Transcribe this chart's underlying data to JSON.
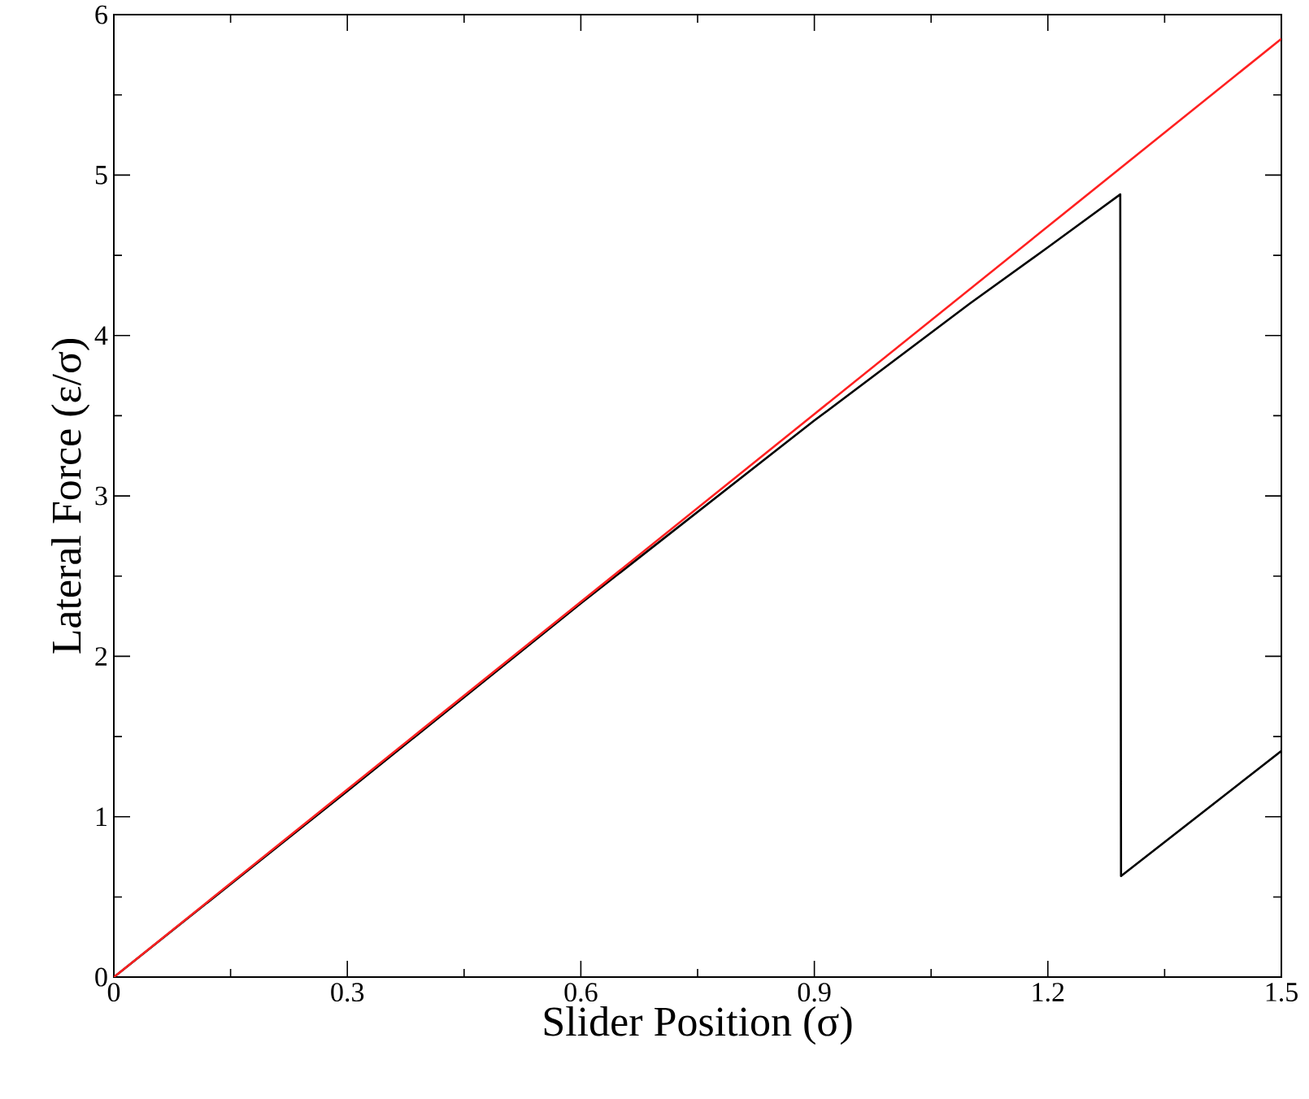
{
  "chart_data": {
    "type": "line",
    "xlabel": "Slider Position (σ)",
    "ylabel": "Lateral Force (ε/σ)",
    "xlim": [
      0,
      1.5
    ],
    "ylim": [
      0,
      6
    ],
    "xticks": [
      0,
      0.3,
      0.6,
      0.9,
      1.2,
      1.5
    ],
    "yticks": [
      0,
      1,
      2,
      3,
      4,
      5,
      6
    ],
    "grid": false,
    "marker": "none",
    "line_style": "solid",
    "series": [
      {
        "color": "#000000",
        "x": [
          0,
          0.3,
          0.6,
          0.9,
          1.1,
          1.2,
          1.293,
          1.294,
          1.5
        ],
        "values": [
          0,
          1.16,
          2.33,
          3.47,
          4.2,
          4.55,
          4.88,
          0.63,
          1.41
        ]
      },
      {
        "color": "#ff2020",
        "x": [
          0,
          1.5
        ],
        "values": [
          0,
          5.85
        ]
      }
    ]
  }
}
